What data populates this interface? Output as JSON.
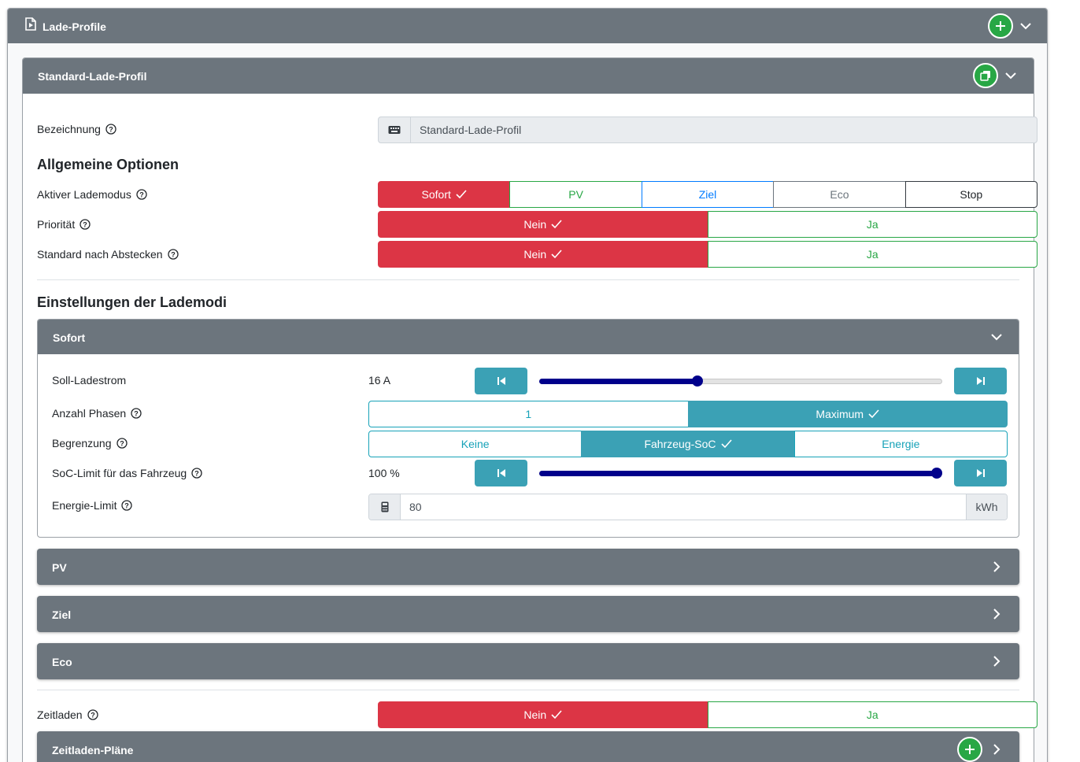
{
  "panel": {
    "title": "Lade-Profile"
  },
  "profile": {
    "title": "Standard-Lade-Profil",
    "name_label": "Bezeichnung",
    "name_value": "Standard-Lade-Profil"
  },
  "general": {
    "heading": "Allgemeine Optionen",
    "mode_label": "Aktiver Lademodus",
    "modes": [
      "Sofort",
      "PV",
      "Ziel",
      "Eco",
      "Stop"
    ],
    "active_mode": "Sofort",
    "priority_label": "Priorität",
    "priority_options": [
      "Nein",
      "Ja"
    ],
    "priority_value": "Nein",
    "default_after_unplug_label": "Standard nach Abstecken",
    "default_after_unplug_options": [
      "Nein",
      "Ja"
    ],
    "default_after_unplug_value": "Nein"
  },
  "modes_settings": {
    "heading": "Einstellungen der Lademodi",
    "sofort": {
      "title": "Sofort",
      "current_label": "Soll-Ladestrom",
      "current_value": "16 A",
      "current_level": 0.39,
      "phases_label": "Anzahl Phasen",
      "phases_options": [
        "1",
        "Maximum"
      ],
      "phases_value": "Maximum",
      "limit_label": "Begrenzung",
      "limit_options": [
        "Keine",
        "Fahrzeug-SoC",
        "Energie"
      ],
      "limit_value": "Fahrzeug-SoC",
      "soc_label": "SoC-Limit für das Fahrzeug",
      "soc_value": "100 %",
      "soc_level": 1.0,
      "energy_label": "Energie-Limit",
      "energy_value": "80",
      "energy_unit": "kWh"
    },
    "collapsed": [
      "PV",
      "Ziel",
      "Eco"
    ]
  },
  "timed": {
    "label": "Zeitladen",
    "options": [
      "Nein",
      "Ja"
    ],
    "value": "Nein",
    "plans_title": "Zeitladen-Pläne"
  },
  "colors": {
    "header_gray": "#6c757d",
    "danger": "#dc3545",
    "success": "#28a745",
    "info": "#3ba1b5",
    "slider": "#00008b"
  }
}
